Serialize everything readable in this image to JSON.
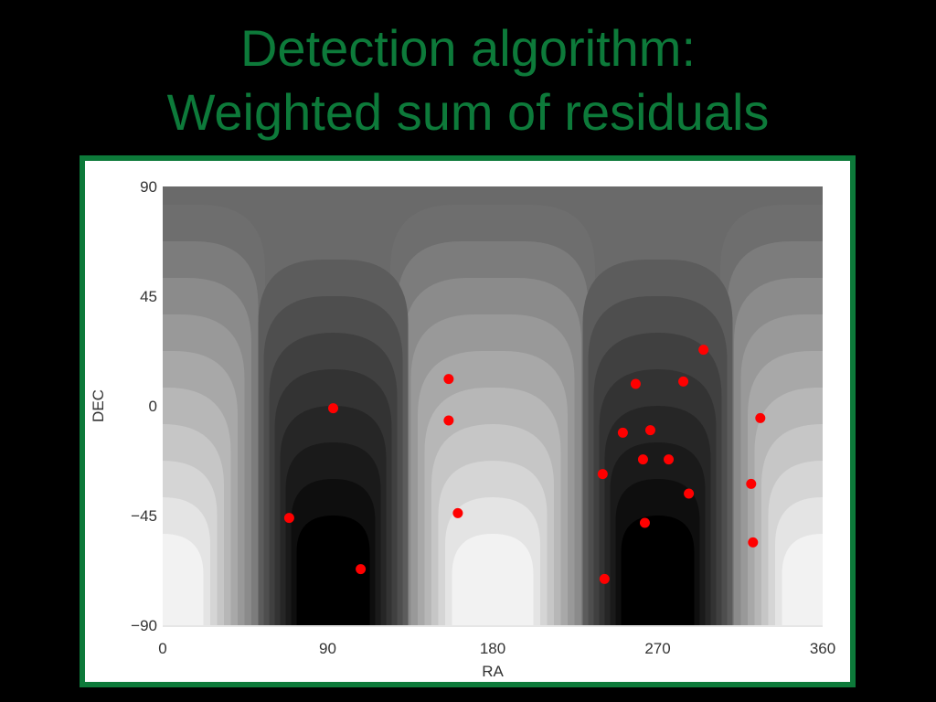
{
  "colors": {
    "background": "#000000",
    "title": "#0d7a3a",
    "frame": "#0d7a3a",
    "point": "#ff0000",
    "axis_text": "#333333"
  },
  "title": {
    "line1": "Detection algorithm:",
    "line2": "Weighted sum of residuals"
  },
  "chart_data": {
    "type": "scatter",
    "background": "grayscale contour map",
    "xlabel": "RA",
    "ylabel": "DEC",
    "xlim": [
      0,
      360
    ],
    "ylim": [
      -90,
      90
    ],
    "xticks": [
      {
        "value": 0,
        "label": "0"
      },
      {
        "value": 90,
        "label": "90"
      },
      {
        "value": 180,
        "label": "180"
      },
      {
        "value": 270,
        "label": "270"
      },
      {
        "value": 360,
        "label": "360"
      }
    ],
    "yticks": [
      {
        "value": 90,
        "label": "90"
      },
      {
        "value": 45,
        "label": "45"
      },
      {
        "value": 0,
        "label": "0"
      },
      {
        "value": -45,
        "label": "−45"
      },
      {
        "value": -90,
        "label": "−90"
      }
    ],
    "points": [
      {
        "ra": 69,
        "dec": -46
      },
      {
        "ra": 93,
        "dec": -1
      },
      {
        "ra": 108,
        "dec": -67
      },
      {
        "ra": 156,
        "dec": 11
      },
      {
        "ra": 156,
        "dec": -6
      },
      {
        "ra": 161,
        "dec": -44
      },
      {
        "ra": 240,
        "dec": -28
      },
      {
        "ra": 241,
        "dec": -71
      },
      {
        "ra": 251,
        "dec": -11
      },
      {
        "ra": 258,
        "dec": 9
      },
      {
        "ra": 262,
        "dec": -22
      },
      {
        "ra": 263,
        "dec": -48
      },
      {
        "ra": 266,
        "dec": -10
      },
      {
        "ra": 276,
        "dec": -22
      },
      {
        "ra": 284,
        "dec": 10
      },
      {
        "ra": 287,
        "dec": -36
      },
      {
        "ra": 295,
        "dec": 23
      },
      {
        "ra": 321,
        "dec": -32
      },
      {
        "ra": 322,
        "dec": -56
      },
      {
        "ra": 326,
        "dec": -5
      }
    ]
  }
}
